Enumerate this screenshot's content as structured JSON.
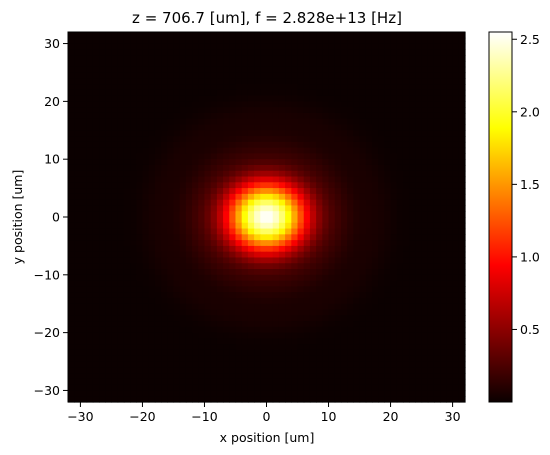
{
  "chart_data": {
    "type": "heatmap",
    "title": "z = 706.7 [um], f = 2.828e+13 [Hz]",
    "xlabel": "x position [um]",
    "ylabel": "y position [um]",
    "xlim": [
      -32,
      32
    ],
    "ylim": [
      -32,
      32
    ],
    "x_ticks": [
      -30,
      -20,
      -10,
      0,
      10,
      20,
      30
    ],
    "x_tick_labels": [
      "−30",
      "−20",
      "−10",
      "0",
      "10",
      "20",
      "30"
    ],
    "y_ticks": [
      -30,
      -20,
      -10,
      0,
      10,
      20,
      30
    ],
    "y_tick_labels": [
      "−30",
      "−20",
      "−10",
      "0",
      "10",
      "20",
      "30"
    ],
    "colormap": "hot",
    "colormap_stops": [
      "#0b0000",
      "#ff0000",
      "#ffff00",
      "#ffffff"
    ],
    "grid": false,
    "grid_cells": 64,
    "field": {
      "description_of_shape": "central gaussian spot with faint outer rings",
      "peak_value": 2.55,
      "peak_center": [
        0,
        0
      ],
      "spot_sigma_x": 4.6,
      "spot_sigma_y": 4.3,
      "ring_radii": [
        12,
        17.5
      ],
      "ring_amplitudes": [
        0.09,
        0.05
      ]
    },
    "colorbar": {
      "vmin": 0.0,
      "vmax": 2.55,
      "ticks": [
        0.5,
        1.0,
        1.5,
        2.0,
        2.5
      ],
      "tick_labels": [
        "0.5",
        "1.0",
        "1.5",
        "2.0",
        "2.5"
      ]
    }
  }
}
